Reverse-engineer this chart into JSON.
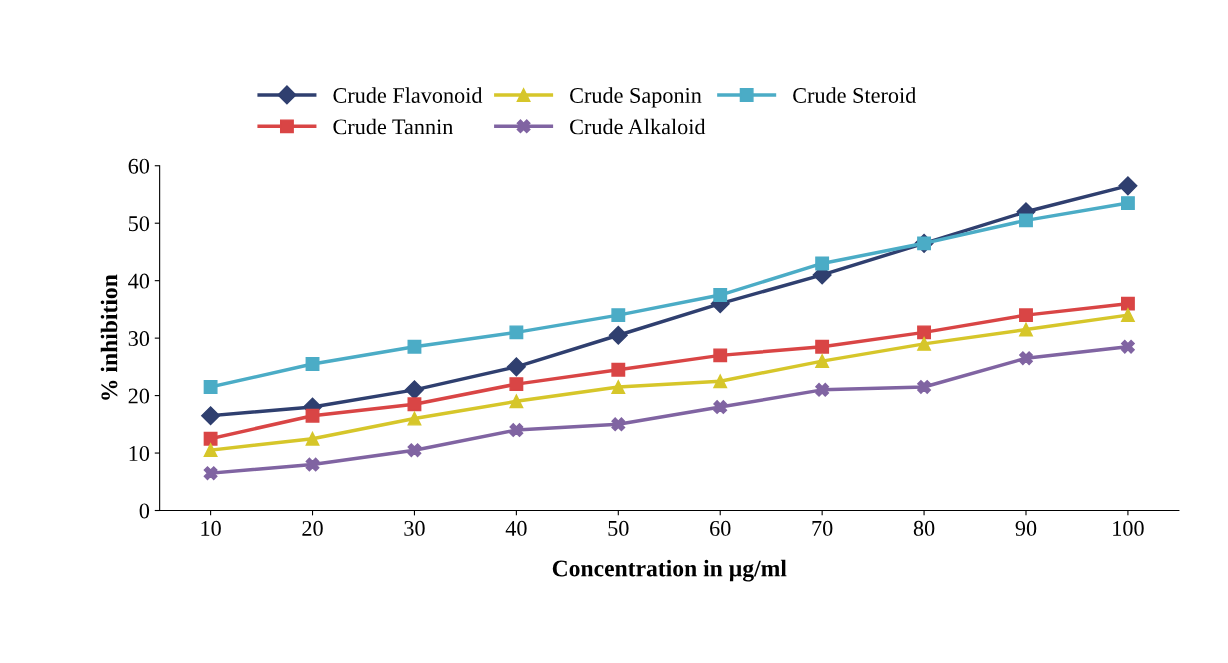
{
  "chart_data": {
    "type": "line",
    "xlabel": "Concentration in µg/ml",
    "ylabel": "% inhibition",
    "categories": [
      "10",
      "20",
      "30",
      "40",
      "50",
      "60",
      "70",
      "80",
      "90",
      "100"
    ],
    "ylim": [
      0,
      60
    ],
    "yticks": [
      0,
      10,
      20,
      30,
      40,
      50,
      60
    ],
    "grid": false,
    "legend": "top",
    "series": [
      {
        "name": "Crude Flavonoid",
        "color": "#2f3f6f",
        "marker": "diamond",
        "values": [
          16.5,
          18,
          21,
          25,
          30.5,
          36,
          41,
          46.5,
          52,
          56.5
        ]
      },
      {
        "name": "Crude Tannin",
        "color": "#d94545",
        "marker": "square",
        "values": [
          12.5,
          16.5,
          18.5,
          22,
          24.5,
          27,
          28.5,
          31,
          34,
          36
        ]
      },
      {
        "name": "Crude Saponin",
        "color": "#d6c62a",
        "marker": "triangle",
        "values": [
          10.5,
          12.5,
          16,
          19,
          21.5,
          22.5,
          26,
          29,
          31.5,
          34
        ]
      },
      {
        "name": "Crude Alkaloid",
        "color": "#8064a2",
        "marker": "cross",
        "values": [
          6.5,
          8,
          10.5,
          14,
          15,
          18,
          21,
          21.5,
          26.5,
          28.5
        ]
      },
      {
        "name": "Crude Steroid",
        "color": "#4bacc6",
        "marker": "square",
        "values": [
          21.5,
          25.5,
          28.5,
          31,
          34,
          37.5,
          43,
          46.5,
          50.5,
          53.5
        ]
      }
    ]
  }
}
